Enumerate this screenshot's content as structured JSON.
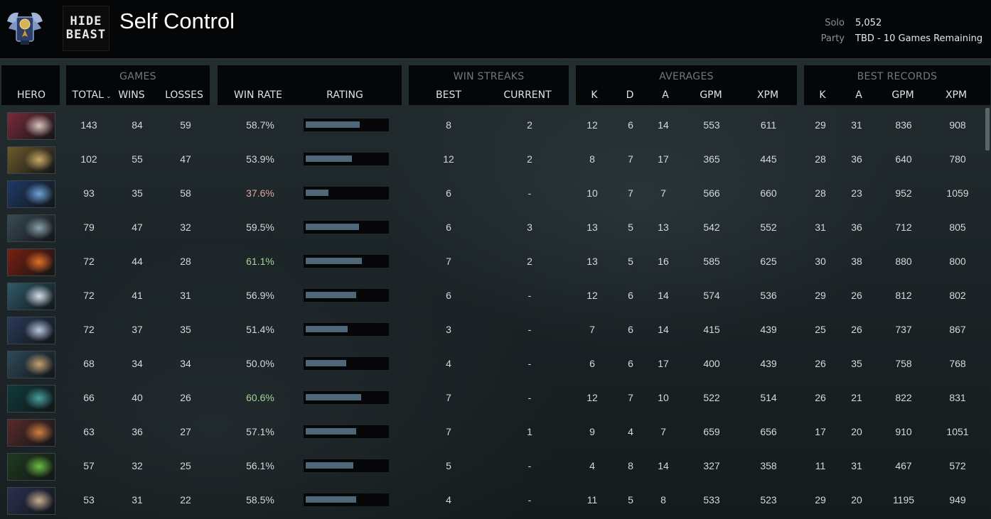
{
  "header": {
    "player_name": "Self Control",
    "team_logo_text": [
      "HIDE",
      "BEAST"
    ],
    "solo_label": "Solo",
    "solo_value": "5,052",
    "party_label": "Party",
    "party_value": "TBD - 10 Games Remaining"
  },
  "columns": {
    "hero": "HERO",
    "games_group": "GAMES",
    "total": "TOTAL",
    "wins": "WINS",
    "losses": "LOSSES",
    "win_rate": "WIN RATE",
    "rating": "RATING",
    "streaks_group": "WIN STREAKS",
    "best": "BEST",
    "current": "CURRENT",
    "averages_group": "AVERAGES",
    "avg_k": "K",
    "avg_d": "D",
    "avg_a": "A",
    "avg_gpm": "GPM",
    "avg_xpm": "XPM",
    "records_group": "BEST RECORDS",
    "rec_k": "K",
    "rec_a": "A",
    "rec_gpm": "GPM",
    "rec_xpm": "XPM"
  },
  "rows": [
    {
      "portrait": "hero-invoker",
      "total": "143",
      "wins": "84",
      "losses": "59",
      "win_rate": "58.7%",
      "wr_tone": "neutral",
      "rating": 0.67,
      "best": "8",
      "current": "2",
      "k": "12",
      "d": "6",
      "a": "14",
      "gpm": "553",
      "xpm": "611",
      "bk": "29",
      "ba": "31",
      "bgpm": "836",
      "bxpm": "908"
    },
    {
      "portrait": "hero-2",
      "total": "102",
      "wins": "55",
      "losses": "47",
      "win_rate": "53.9%",
      "wr_tone": "neutral",
      "rating": 0.57,
      "best": "12",
      "current": "2",
      "k": "8",
      "d": "7",
      "a": "17",
      "gpm": "365",
      "xpm": "445",
      "bk": "28",
      "ba": "36",
      "bgpm": "640",
      "bxpm": "780"
    },
    {
      "portrait": "hero-3",
      "total": "93",
      "wins": "35",
      "losses": "58",
      "win_rate": "37.6%",
      "wr_tone": "red",
      "rating": 0.28,
      "best": "6",
      "current": "-",
      "k": "10",
      "d": "7",
      "a": "7",
      "gpm": "566",
      "xpm": "660",
      "bk": "28",
      "ba": "23",
      "bgpm": "952",
      "bxpm": "1059"
    },
    {
      "portrait": "hero-4",
      "total": "79",
      "wins": "47",
      "losses": "32",
      "win_rate": "59.5%",
      "wr_tone": "neutral",
      "rating": 0.66,
      "best": "6",
      "current": "3",
      "k": "13",
      "d": "5",
      "a": "13",
      "gpm": "542",
      "xpm": "552",
      "bk": "31",
      "ba": "36",
      "bgpm": "712",
      "bxpm": "805"
    },
    {
      "portrait": "hero-5",
      "total": "72",
      "wins": "44",
      "losses": "28",
      "win_rate": "61.1%",
      "wr_tone": "green",
      "rating": 0.69,
      "best": "7",
      "current": "2",
      "k": "13",
      "d": "5",
      "a": "16",
      "gpm": "585",
      "xpm": "625",
      "bk": "30",
      "ba": "38",
      "bgpm": "880",
      "bxpm": "800"
    },
    {
      "portrait": "hero-6",
      "total": "72",
      "wins": "41",
      "losses": "31",
      "win_rate": "56.9%",
      "wr_tone": "neutral",
      "rating": 0.62,
      "best": "6",
      "current": "-",
      "k": "12",
      "d": "6",
      "a": "14",
      "gpm": "574",
      "xpm": "536",
      "bk": "29",
      "ba": "26",
      "bgpm": "812",
      "bxpm": "802"
    },
    {
      "portrait": "hero-7",
      "total": "72",
      "wins": "37",
      "losses": "35",
      "win_rate": "51.4%",
      "wr_tone": "neutral",
      "rating": 0.52,
      "best": "3",
      "current": "-",
      "k": "7",
      "d": "6",
      "a": "14",
      "gpm": "415",
      "xpm": "439",
      "bk": "25",
      "ba": "26",
      "bgpm": "737",
      "bxpm": "867"
    },
    {
      "portrait": "hero-8",
      "total": "68",
      "wins": "34",
      "losses": "34",
      "win_rate": "50.0%",
      "wr_tone": "neutral",
      "rating": 0.5,
      "best": "4",
      "current": "-",
      "k": "6",
      "d": "6",
      "a": "17",
      "gpm": "400",
      "xpm": "439",
      "bk": "26",
      "ba": "35",
      "bgpm": "758",
      "bxpm": "768"
    },
    {
      "portrait": "hero-9",
      "total": "66",
      "wins": "40",
      "losses": "26",
      "win_rate": "60.6%",
      "wr_tone": "green",
      "rating": 0.68,
      "best": "7",
      "current": "-",
      "k": "12",
      "d": "7",
      "a": "10",
      "gpm": "522",
      "xpm": "514",
      "bk": "26",
      "ba": "21",
      "bgpm": "822",
      "bxpm": "831"
    },
    {
      "portrait": "hero-10",
      "total": "63",
      "wins": "36",
      "losses": "27",
      "win_rate": "57.1%",
      "wr_tone": "neutral",
      "rating": 0.62,
      "best": "7",
      "current": "1",
      "k": "9",
      "d": "4",
      "a": "7",
      "gpm": "659",
      "xpm": "656",
      "bk": "17",
      "ba": "20",
      "bgpm": "910",
      "bxpm": "1051"
    },
    {
      "portrait": "hero-11",
      "total": "57",
      "wins": "32",
      "losses": "25",
      "win_rate": "56.1%",
      "wr_tone": "neutral",
      "rating": 0.59,
      "best": "5",
      "current": "-",
      "k": "4",
      "d": "8",
      "a": "14",
      "gpm": "327",
      "xpm": "358",
      "bk": "11",
      "ba": "31",
      "bgpm": "467",
      "bxpm": "572"
    },
    {
      "portrait": "hero-12",
      "total": "53",
      "wins": "31",
      "losses": "22",
      "win_rate": "58.5%",
      "wr_tone": "neutral",
      "rating": 0.62,
      "best": "4",
      "current": "-",
      "k": "11",
      "d": "5",
      "a": "8",
      "gpm": "533",
      "xpm": "523",
      "bk": "29",
      "ba": "20",
      "bgpm": "1195",
      "bxpm": "949"
    }
  ],
  "colors": {
    "header_bg": "#050607",
    "rating_fill": "#4f6877",
    "win_rate_red": "#e0a7a2",
    "win_rate_green": "#a8d49a"
  }
}
